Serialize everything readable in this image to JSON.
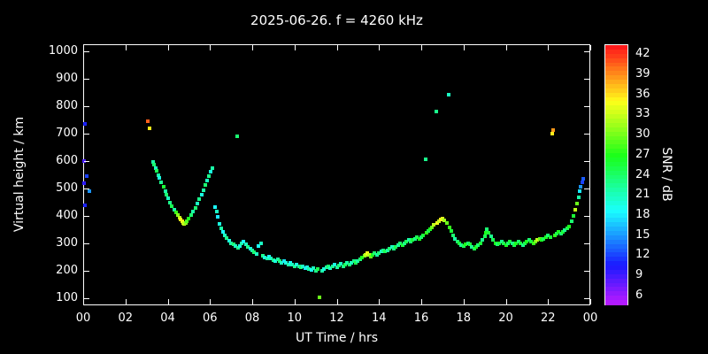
{
  "chart_data": {
    "type": "scatter",
    "title": "2025-06-26. f = 4260 kHz",
    "xlabel": "UT Time / hrs",
    "ylabel": "Virtual height / km",
    "colorbar_label": "SNR / dB",
    "grid": false,
    "background": "#000000",
    "axis_color": "#ffffff",
    "xlim": [
      0,
      24
    ],
    "ylim": [
      75,
      1025
    ],
    "x_ticks": [
      {
        "value": 0,
        "label": "00"
      },
      {
        "value": 2,
        "label": "02"
      },
      {
        "value": 4,
        "label": "04"
      },
      {
        "value": 6,
        "label": "06"
      },
      {
        "value": 8,
        "label": "08"
      },
      {
        "value": 10,
        "label": "10"
      },
      {
        "value": 12,
        "label": "12"
      },
      {
        "value": 14,
        "label": "14"
      },
      {
        "value": 16,
        "label": "16"
      },
      {
        "value": 18,
        "label": "18"
      },
      {
        "value": 20,
        "label": "20"
      },
      {
        "value": 22,
        "label": "22"
      },
      {
        "value": 24,
        "label": "00"
      }
    ],
    "y_ticks": [
      100,
      200,
      300,
      400,
      500,
      600,
      700,
      800,
      900,
      1000
    ],
    "colorbar": {
      "min": 4.5,
      "max": 43.5,
      "ticks": [
        6,
        9,
        12,
        15,
        18,
        21,
        24,
        27,
        30,
        33,
        36,
        39,
        42
      ]
    },
    "points": [
      [
        0.08,
        735,
        11
      ],
      [
        0.05,
        600,
        9
      ],
      [
        0.18,
        545,
        12
      ],
      [
        0.04,
        520,
        10
      ],
      [
        0.3,
        490,
        15
      ],
      [
        0.1,
        438,
        11
      ],
      [
        3.05,
        745,
        41
      ],
      [
        3.15,
        718,
        36
      ],
      [
        3.3,
        598,
        22
      ],
      [
        3.35,
        588,
        24
      ],
      [
        3.42,
        575,
        21
      ],
      [
        3.48,
        565,
        25
      ],
      [
        3.55,
        550,
        22
      ],
      [
        3.62,
        538,
        20
      ],
      [
        3.7,
        522,
        23
      ],
      [
        3.8,
        508,
        26
      ],
      [
        3.88,
        492,
        22
      ],
      [
        3.95,
        478,
        24
      ],
      [
        4.02,
        465,
        21
      ],
      [
        4.1,
        450,
        23
      ],
      [
        4.2,
        436,
        25
      ],
      [
        4.3,
        424,
        22
      ],
      [
        4.4,
        412,
        28
      ],
      [
        4.5,
        402,
        31
      ],
      [
        4.56,
        394,
        33
      ],
      [
        4.62,
        387,
        35
      ],
      [
        4.68,
        380,
        36
      ],
      [
        4.72,
        374,
        34
      ],
      [
        4.78,
        370,
        33
      ],
      [
        4.85,
        374,
        31
      ],
      [
        4.92,
        380,
        29
      ],
      [
        5.0,
        390,
        27
      ],
      [
        5.1,
        402,
        24
      ],
      [
        5.2,
        415,
        22
      ],
      [
        5.3,
        430,
        24
      ],
      [
        5.4,
        446,
        21
      ],
      [
        5.5,
        462,
        23
      ],
      [
        5.6,
        478,
        20
      ],
      [
        5.7,
        495,
        22
      ],
      [
        5.8,
        512,
        24
      ],
      [
        5.88,
        530,
        21
      ],
      [
        5.95,
        545,
        23
      ],
      [
        6.05,
        560,
        20
      ],
      [
        6.12,
        575,
        22
      ],
      [
        6.25,
        432,
        19
      ],
      [
        6.32,
        415,
        21
      ],
      [
        6.38,
        398,
        18
      ],
      [
        6.45,
        372,
        20
      ],
      [
        6.52,
        355,
        22
      ],
      [
        6.6,
        342,
        19
      ],
      [
        6.7,
        330,
        21
      ],
      [
        6.8,
        320,
        23
      ],
      [
        6.9,
        310,
        20
      ],
      [
        7.0,
        302,
        22
      ],
      [
        7.1,
        296,
        24
      ],
      [
        7.2,
        290,
        21
      ],
      [
        7.3,
        690,
        24
      ],
      [
        7.32,
        285,
        23
      ],
      [
        7.4,
        292,
        20
      ],
      [
        7.5,
        300,
        22
      ],
      [
        7.6,
        308,
        19
      ],
      [
        7.7,
        298,
        21
      ],
      [
        7.8,
        288,
        23
      ],
      [
        7.9,
        280,
        20
      ],
      [
        8.0,
        274,
        22
      ],
      [
        8.1,
        268,
        24
      ],
      [
        8.2,
        262,
        21
      ],
      [
        8.3,
        292,
        19
      ],
      [
        8.4,
        300,
        21
      ],
      [
        8.5,
        256,
        23
      ],
      [
        8.6,
        250,
        20
      ],
      [
        8.7,
        246,
        22
      ],
      [
        8.8,
        252,
        19
      ],
      [
        8.9,
        245,
        21
      ],
      [
        9.0,
        240,
        23
      ],
      [
        9.1,
        236,
        20
      ],
      [
        9.2,
        242,
        22
      ],
      [
        9.3,
        235,
        24
      ],
      [
        9.4,
        230,
        21
      ],
      [
        9.5,
        236,
        18
      ],
      [
        9.6,
        228,
        20
      ],
      [
        9.7,
        224,
        22
      ],
      [
        9.8,
        230,
        19
      ],
      [
        9.9,
        222,
        21
      ],
      [
        10.0,
        218,
        23
      ],
      [
        10.1,
        224,
        20
      ],
      [
        10.2,
        216,
        22
      ],
      [
        10.3,
        212,
        24
      ],
      [
        10.4,
        218,
        21
      ],
      [
        10.5,
        210,
        18
      ],
      [
        10.6,
        214,
        20
      ],
      [
        10.7,
        208,
        22
      ],
      [
        10.8,
        204,
        19
      ],
      [
        10.9,
        210,
        21
      ],
      [
        11.0,
        202,
        23
      ],
      [
        11.1,
        206,
        25
      ],
      [
        11.2,
        105,
        30
      ],
      [
        11.3,
        200,
        22
      ],
      [
        11.4,
        206,
        20
      ],
      [
        11.5,
        212,
        22
      ],
      [
        11.6,
        218,
        24
      ],
      [
        11.7,
        210,
        21
      ],
      [
        11.8,
        216,
        23
      ],
      [
        11.9,
        222,
        20
      ],
      [
        12.0,
        215,
        22
      ],
      [
        12.1,
        220,
        24
      ],
      [
        12.2,
        226,
        21
      ],
      [
        12.3,
        218,
        23
      ],
      [
        12.4,
        224,
        25
      ],
      [
        12.5,
        230,
        22
      ],
      [
        12.6,
        224,
        24
      ],
      [
        12.7,
        230,
        21
      ],
      [
        12.8,
        236,
        23
      ],
      [
        12.9,
        230,
        25
      ],
      [
        13.0,
        236,
        22
      ],
      [
        13.1,
        242,
        24
      ],
      [
        13.2,
        248,
        27
      ],
      [
        13.3,
        254,
        30
      ],
      [
        13.38,
        260,
        33
      ],
      [
        13.45,
        266,
        35
      ],
      [
        13.52,
        258,
        33
      ],
      [
        13.6,
        252,
        30
      ],
      [
        13.7,
        258,
        27
      ],
      [
        13.8,
        264,
        24
      ],
      [
        13.9,
        258,
        22
      ],
      [
        14.0,
        264,
        24
      ],
      [
        14.1,
        270,
        21
      ],
      [
        14.2,
        276,
        23
      ],
      [
        14.3,
        270,
        25
      ],
      [
        14.4,
        276,
        22
      ],
      [
        14.5,
        282,
        24
      ],
      [
        14.6,
        288,
        21
      ],
      [
        14.7,
        282,
        23
      ],
      [
        14.8,
        288,
        25
      ],
      [
        14.9,
        294,
        22
      ],
      [
        15.0,
        300,
        24
      ],
      [
        15.1,
        294,
        26
      ],
      [
        15.2,
        300,
        23
      ],
      [
        15.3,
        306,
        25
      ],
      [
        15.4,
        312,
        22
      ],
      [
        15.5,
        306,
        24
      ],
      [
        15.6,
        312,
        26
      ],
      [
        15.7,
        318,
        23
      ],
      [
        15.8,
        324,
        25
      ],
      [
        15.9,
        318,
        27
      ],
      [
        16.0,
        324,
        24
      ],
      [
        16.1,
        330,
        26
      ],
      [
        16.2,
        605,
        23
      ],
      [
        16.26,
        338,
        28
      ],
      [
        16.32,
        345,
        25
      ],
      [
        16.4,
        352,
        27
      ],
      [
        16.5,
        360,
        30
      ],
      [
        16.6,
        368,
        33
      ],
      [
        16.7,
        780,
        23
      ],
      [
        16.76,
        375,
        35
      ],
      [
        16.84,
        382,
        33
      ],
      [
        16.92,
        388,
        36
      ],
      [
        17.0,
        392,
        34
      ],
      [
        17.1,
        385,
        32
      ],
      [
        17.2,
        375,
        30
      ],
      [
        17.28,
        840,
        21
      ],
      [
        17.34,
        360,
        28
      ],
      [
        17.42,
        345,
        26
      ],
      [
        17.5,
        330,
        24
      ],
      [
        17.6,
        318,
        22
      ],
      [
        17.7,
        308,
        24
      ],
      [
        17.8,
        300,
        26
      ],
      [
        17.9,
        294,
        23
      ],
      [
        18.0,
        290,
        25
      ],
      [
        18.1,
        296,
        27
      ],
      [
        18.2,
        302,
        24
      ],
      [
        18.3,
        296,
        26
      ],
      [
        18.4,
        288,
        23
      ],
      [
        18.5,
        282,
        25
      ],
      [
        18.6,
        288,
        27
      ],
      [
        18.7,
        294,
        24
      ],
      [
        18.8,
        302,
        26
      ],
      [
        18.9,
        312,
        23
      ],
      [
        19.0,
        325,
        25
      ],
      [
        19.06,
        340,
        27
      ],
      [
        19.12,
        352,
        24
      ],
      [
        19.2,
        340,
        26
      ],
      [
        19.3,
        325,
        23
      ],
      [
        19.4,
        312,
        25
      ],
      [
        19.5,
        302,
        27
      ],
      [
        19.6,
        296,
        24
      ],
      [
        19.7,
        302,
        26
      ],
      [
        19.8,
        308,
        23
      ],
      [
        19.9,
        300,
        25
      ],
      [
        20.0,
        295,
        27
      ],
      [
        20.1,
        300,
        24
      ],
      [
        20.2,
        306,
        26
      ],
      [
        20.3,
        300,
        23
      ],
      [
        20.4,
        295,
        25
      ],
      [
        20.5,
        300,
        27
      ],
      [
        20.6,
        306,
        24
      ],
      [
        20.7,
        300,
        26
      ],
      [
        20.8,
        295,
        23
      ],
      [
        20.9,
        300,
        25
      ],
      [
        21.0,
        306,
        27
      ],
      [
        21.1,
        312,
        24
      ],
      [
        21.2,
        306,
        26
      ],
      [
        21.3,
        300,
        28
      ],
      [
        21.4,
        306,
        30
      ],
      [
        21.5,
        312,
        33
      ],
      [
        21.6,
        318,
        30
      ],
      [
        21.7,
        312,
        27
      ],
      [
        21.8,
        318,
        25
      ],
      [
        21.9,
        324,
        27
      ],
      [
        22.0,
        330,
        24
      ],
      [
        22.1,
        324,
        26
      ],
      [
        22.18,
        700,
        36
      ],
      [
        22.26,
        712,
        39
      ],
      [
        22.32,
        330,
        28
      ],
      [
        22.4,
        336,
        25
      ],
      [
        22.5,
        342,
        27
      ],
      [
        22.6,
        336,
        24
      ],
      [
        22.7,
        342,
        26
      ],
      [
        22.8,
        348,
        23
      ],
      [
        22.9,
        355,
        25
      ],
      [
        23.0,
        362,
        27
      ],
      [
        23.1,
        380,
        24
      ],
      [
        23.2,
        400,
        26
      ],
      [
        23.28,
        422,
        33
      ],
      [
        23.36,
        445,
        30
      ],
      [
        23.44,
        468,
        22
      ],
      [
        23.5,
        490,
        18
      ],
      [
        23.56,
        508,
        15
      ],
      [
        23.62,
        522,
        12
      ],
      [
        23.66,
        535,
        13
      ]
    ]
  }
}
